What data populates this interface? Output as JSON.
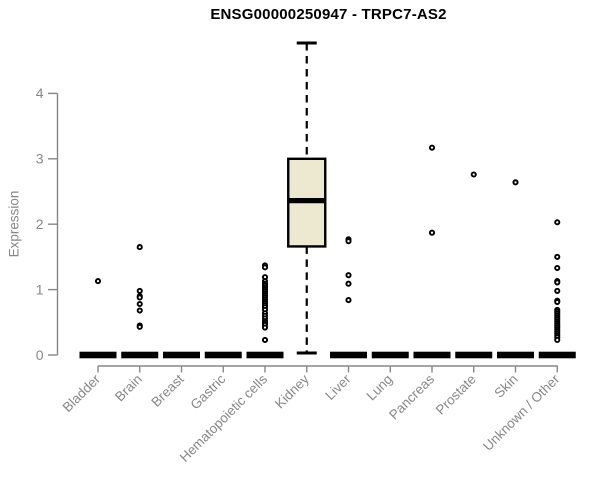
{
  "chart_data": {
    "type": "boxplot",
    "title": "ENSG00000250947 - TRPC7-AS2",
    "ylabel": "Expression",
    "xlabel": "",
    "ylim": [
      0,
      4.8
    ],
    "yticks": [
      0,
      1,
      2,
      3,
      4
    ],
    "grid": false,
    "colors": {
      "box_fill": "#EDE8D0",
      "box_stroke": "#000000",
      "axis": "#878787",
      "title": "#000000",
      "background": "#FFFFFF"
    },
    "categories": [
      "Bladder",
      "Brain",
      "Breast",
      "Gastric",
      "Hematopoietic cells",
      "Kidney",
      "Liver",
      "Lung",
      "Pancreas",
      "Prostate",
      "Skin",
      "Unknown / Other"
    ],
    "series": [
      {
        "name": "Bladder",
        "whisker_low": 0,
        "q1": 0,
        "median": 0,
        "q3": 0,
        "whisker_high": 0,
        "outliers": [
          1.13
        ]
      },
      {
        "name": "Brain",
        "whisker_low": 0,
        "q1": 0,
        "median": 0,
        "q3": 0,
        "whisker_high": 0,
        "outliers": [
          1.65,
          0.98,
          0.9,
          0.88,
          0.78,
          0.68,
          0.45,
          0.43
        ]
      },
      {
        "name": "Breast",
        "whisker_low": 0,
        "q1": 0,
        "median": 0,
        "q3": 0,
        "whisker_high": 0,
        "outliers": []
      },
      {
        "name": "Gastric",
        "whisker_low": 0,
        "q1": 0,
        "median": 0,
        "q3": 0,
        "whisker_high": 0,
        "outliers": []
      },
      {
        "name": "Hematopoietic cells",
        "whisker_low": 0,
        "q1": 0,
        "median": 0,
        "q3": 0,
        "whisker_high": 0,
        "outliers": [
          1.37,
          1.34,
          1.19,
          1.13,
          1.09,
          1.06,
          1.03,
          1.0,
          0.97,
          0.94,
          0.91,
          0.88,
          0.85,
          0.82,
          0.79,
          0.76,
          0.73,
          0.69,
          0.64,
          0.6,
          0.56,
          0.52,
          0.49,
          0.46,
          0.42,
          0.23
        ]
      },
      {
        "name": "Kidney",
        "whisker_low": 0.03,
        "q1": 1.66,
        "median": 2.36,
        "q3": 3.0,
        "whisker_high": 4.77,
        "outliers": []
      },
      {
        "name": "Liver",
        "whisker_low": 0,
        "q1": 0,
        "median": 0,
        "q3": 0,
        "whisker_high": 0,
        "outliers": [
          1.77,
          1.74,
          1.22,
          1.09,
          0.84
        ]
      },
      {
        "name": "Lung",
        "whisker_low": 0,
        "q1": 0,
        "median": 0,
        "q3": 0,
        "whisker_high": 0,
        "outliers": []
      },
      {
        "name": "Pancreas",
        "whisker_low": 0,
        "q1": 0,
        "median": 0,
        "q3": 0,
        "whisker_high": 0,
        "outliers": [
          3.17,
          1.87
        ]
      },
      {
        "name": "Prostate",
        "whisker_low": 0,
        "q1": 0,
        "median": 0,
        "q3": 0,
        "whisker_high": 0,
        "outliers": [
          2.76
        ]
      },
      {
        "name": "Skin",
        "whisker_low": 0,
        "q1": 0,
        "median": 0,
        "q3": 0,
        "whisker_high": 0,
        "outliers": [
          2.64
        ]
      },
      {
        "name": "Unknown / Other",
        "whisker_low": 0,
        "q1": 0,
        "median": 0,
        "q3": 0,
        "whisker_high": 0,
        "outliers": [
          2.03,
          1.5,
          1.33,
          1.13,
          1.11,
          0.98,
          0.83,
          0.81,
          0.69,
          0.66,
          0.63,
          0.6,
          0.57,
          0.54,
          0.51,
          0.48,
          0.45,
          0.42,
          0.39,
          0.36,
          0.33,
          0.3,
          0.27,
          0.23
        ]
      }
    ]
  }
}
